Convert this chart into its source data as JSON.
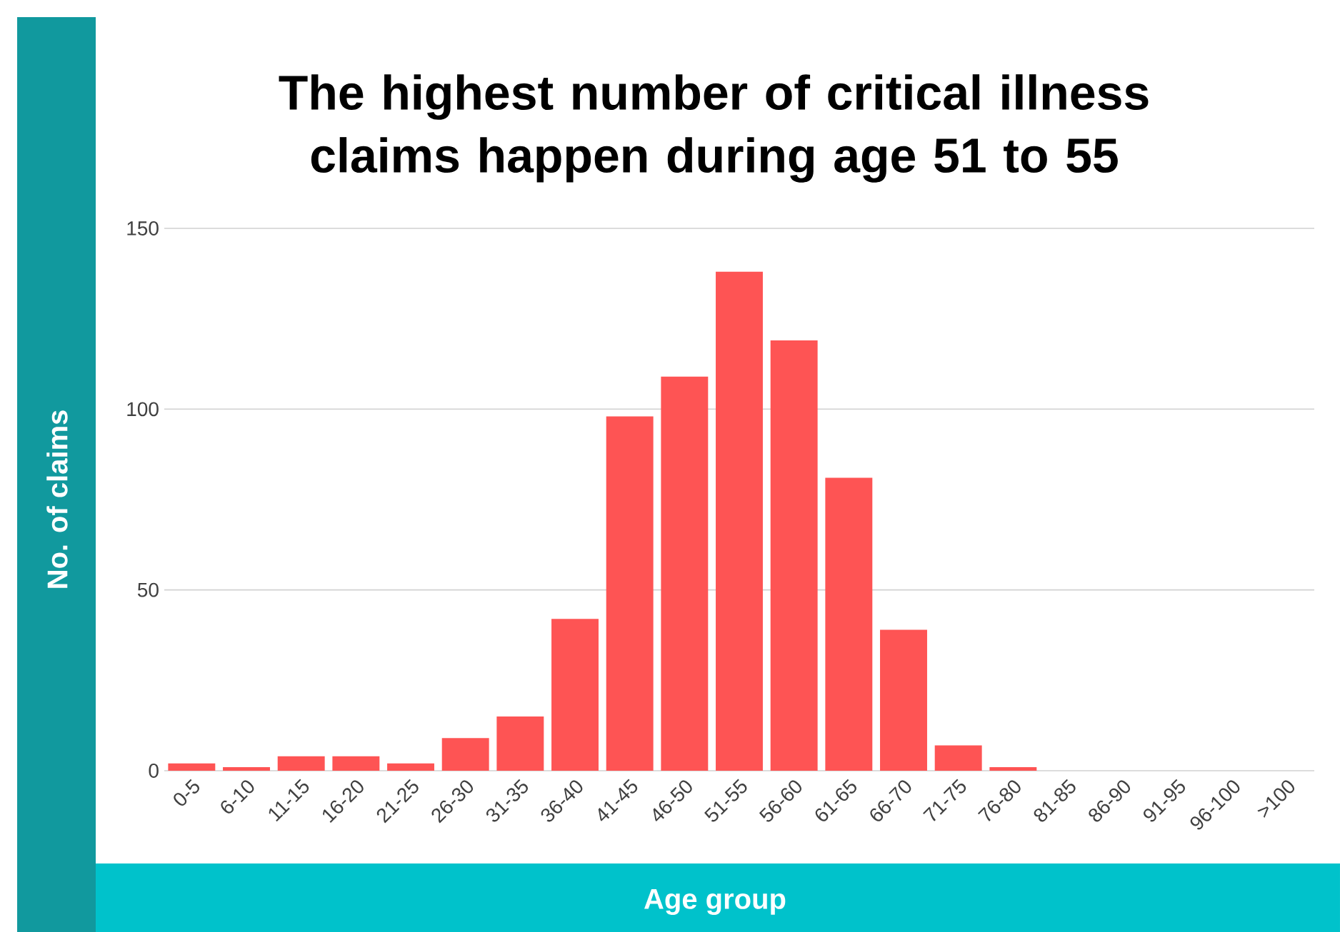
{
  "chart_data": {
    "type": "bar",
    "title": "The highest number of critical illness claims happen during age 51 to 55",
    "xlabel": "Age group",
    "ylabel": "No. of claims",
    "categories": [
      "0-5",
      "6-10",
      "11-15",
      "16-20",
      "21-25",
      "26-30",
      "31-35",
      "36-40",
      "41-45",
      "46-50",
      "51-55",
      "56-60",
      "61-65",
      "66-70",
      "71-75",
      "76-80",
      "81-85",
      "86-90",
      "91-95",
      "96-100",
      ">100"
    ],
    "values": [
      2,
      1,
      4,
      4,
      2,
      9,
      15,
      42,
      98,
      109,
      138,
      119,
      81,
      39,
      7,
      1,
      0,
      0,
      0,
      0,
      0
    ],
    "color": "#fe5454",
    "ylim": [
      0,
      150
    ],
    "yticks": [
      0,
      50,
      100,
      150
    ],
    "grid": "y"
  }
}
